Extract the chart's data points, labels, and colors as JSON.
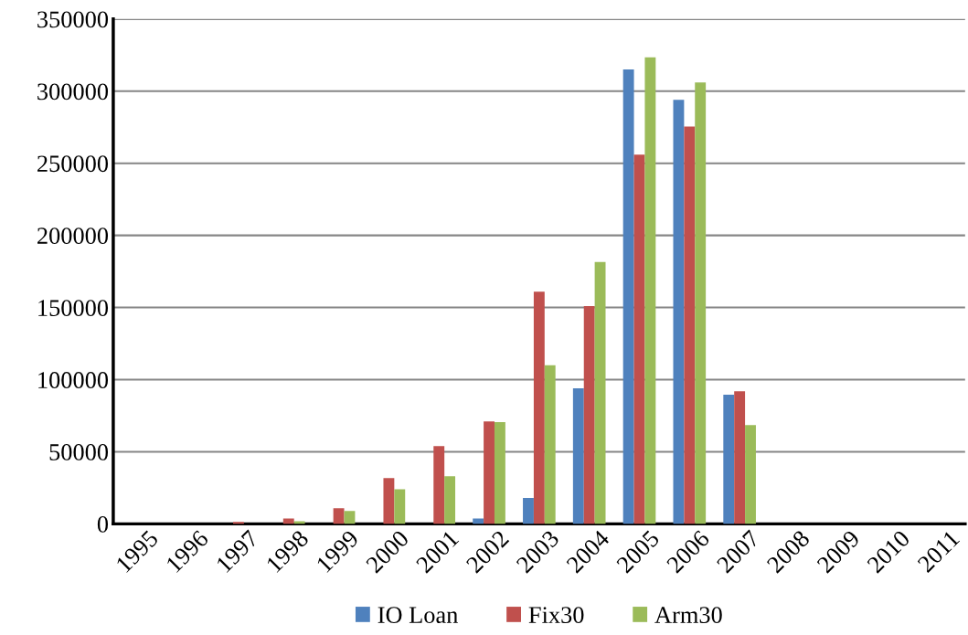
{
  "chart_data": {
    "type": "bar",
    "categories": [
      "1995",
      "1996",
      "1997",
      "1998",
      "1999",
      "2000",
      "2001",
      "2002",
      "2003",
      "2004",
      "2005",
      "2006",
      "2007",
      "2008",
      "2009",
      "2010",
      "2011"
    ],
    "series": [
      {
        "name": "IO Loan",
        "color": "#4f81bd",
        "values": [
          0,
          0,
          0,
          0,
          0,
          0,
          0,
          3800,
          18000,
          94000,
          315000,
          294000,
          89500,
          0,
          0,
          0,
          0
        ]
      },
      {
        "name": "Fix30",
        "color": "#c0504d",
        "values": [
          0,
          0,
          1300,
          3800,
          10800,
          31700,
          54000,
          71000,
          161000,
          151000,
          256000,
          275500,
          92000,
          0,
          0,
          0,
          0
        ]
      },
      {
        "name": "Arm30",
        "color": "#9bbb59",
        "values": [
          0,
          0,
          0,
          1900,
          8900,
          24000,
          33000,
          70500,
          110000,
          181500,
          323500,
          306000,
          68500,
          0,
          0,
          0,
          0
        ]
      }
    ],
    "ylim": [
      0,
      350000
    ],
    "yticks": [
      0,
      50000,
      100000,
      150000,
      200000,
      250000,
      300000,
      350000
    ],
    "grid": "y",
    "legend": "bottom"
  }
}
